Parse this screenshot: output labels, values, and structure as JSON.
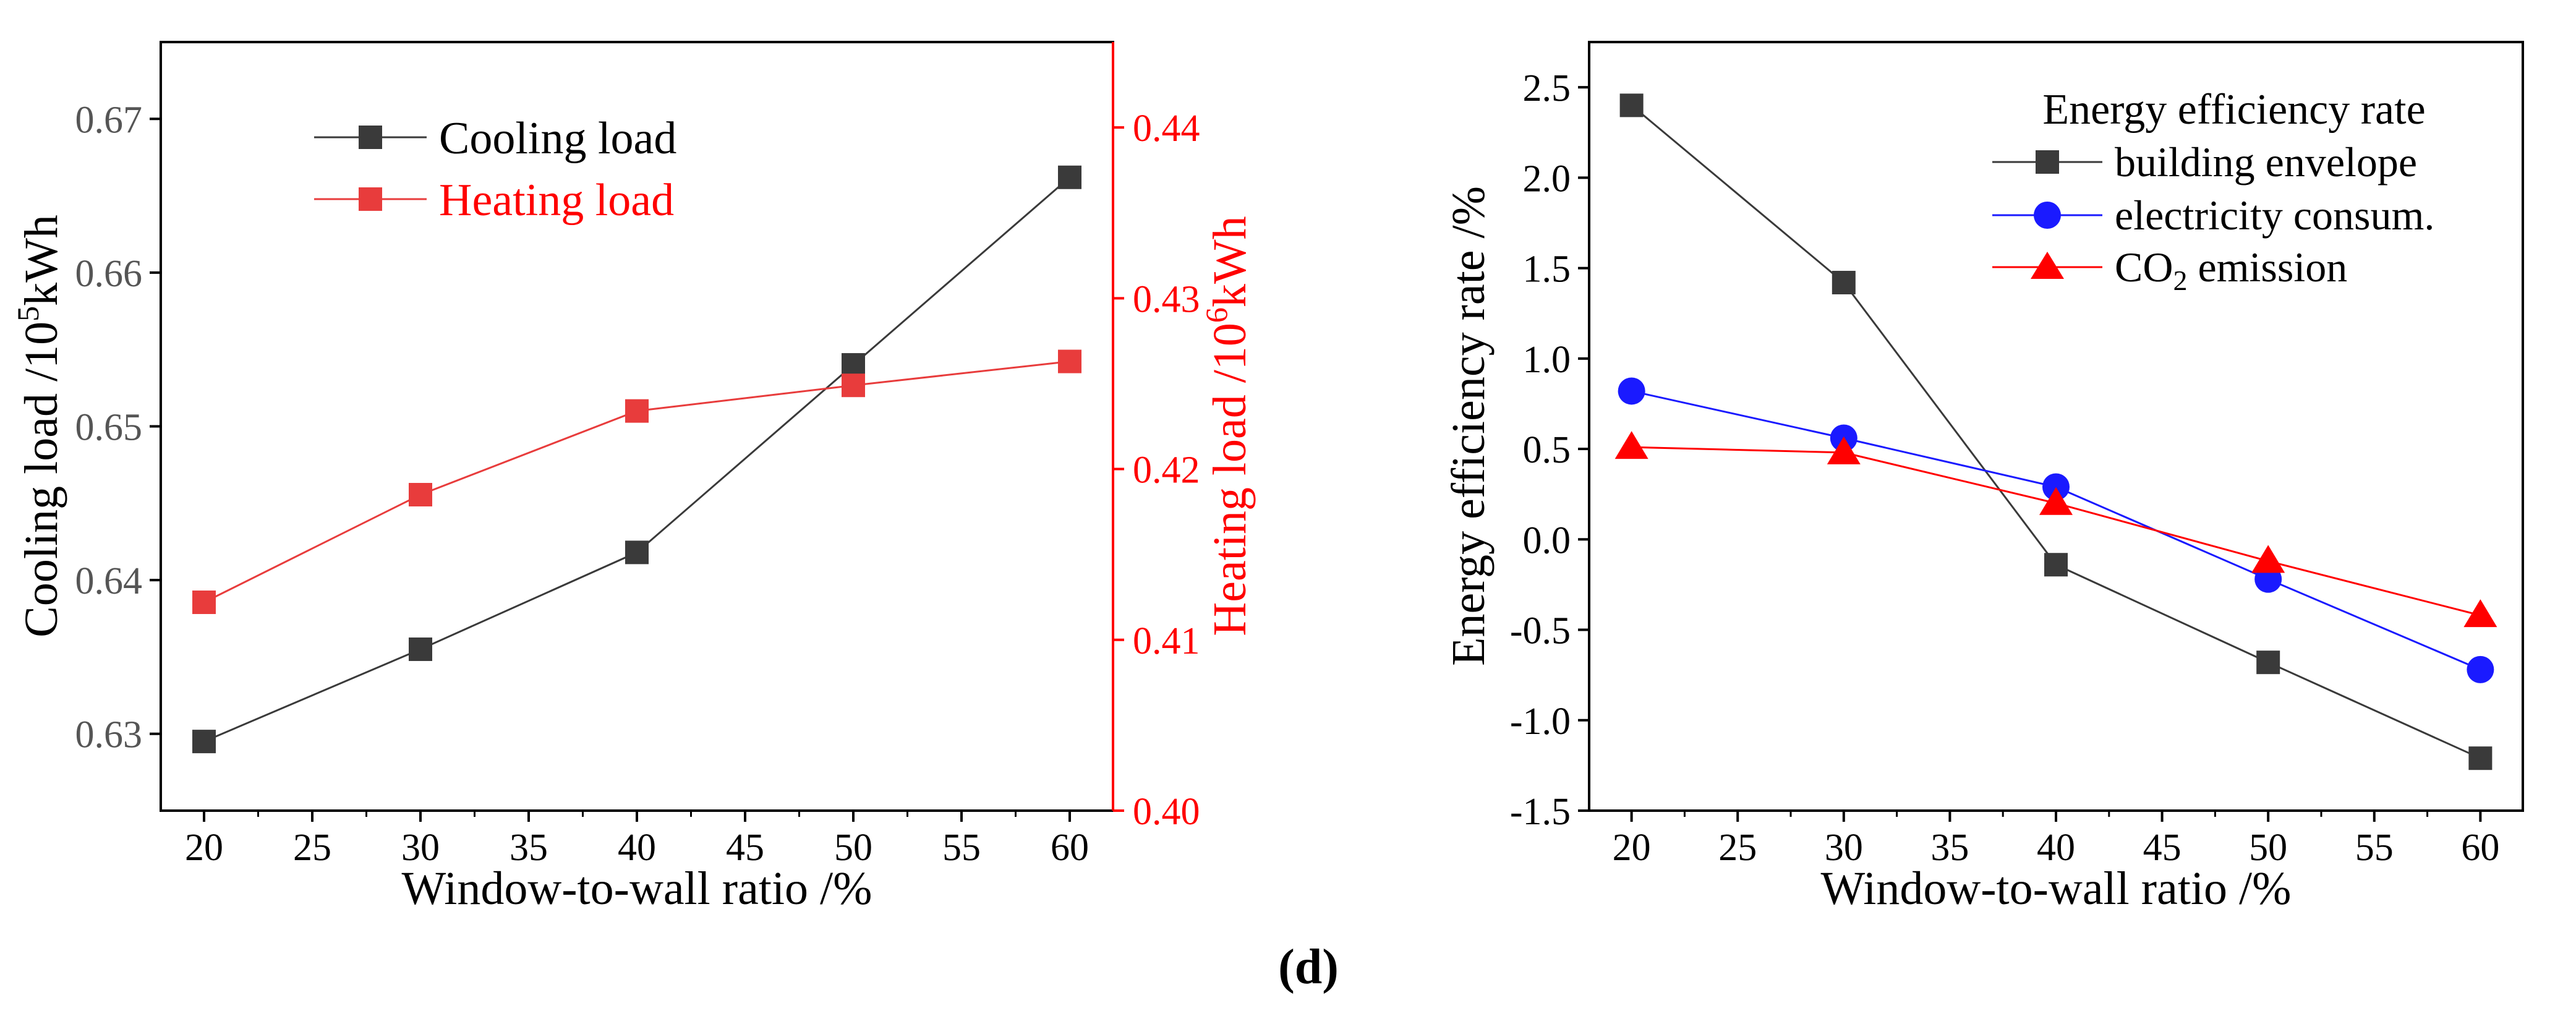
{
  "figure_label": "(d)",
  "colors": {
    "black": "#3a3a3a",
    "red": "#e83c3c",
    "blue": "#1a1aff",
    "pure_red": "#ff0000",
    "axis_red": "#ff0000"
  },
  "chart_data": [
    {
      "type": "line",
      "xlabel": "Window-to-wall ratio /%",
      "ylabel_parts": {
        "base": "Cooling load /10",
        "sup": "5",
        "unit": "kWh"
      },
      "y2label_parts": {
        "base": "Heating load /10",
        "sup": "6",
        "unit": "kWh"
      },
      "xlim": [
        18,
        62
      ],
      "ylim": [
        0.625,
        0.675
      ],
      "y2lim": [
        0.4,
        0.445
      ],
      "x_ticks": [
        20,
        25,
        30,
        35,
        40,
        45,
        50,
        55,
        60
      ],
      "x_tick_labels": [
        "20",
        "25",
        "30",
        "35",
        "40",
        "45",
        "50",
        "55",
        "60"
      ],
      "y_ticks": [
        0.63,
        0.64,
        0.65,
        0.66,
        0.67
      ],
      "y_tick_labels": [
        "0.63",
        "0.64",
        "0.65",
        "0.66",
        "0.67"
      ],
      "y2_ticks": [
        0.4,
        0.41,
        0.42,
        0.43,
        0.44
      ],
      "y2_tick_labels": [
        "0.40",
        "0.41",
        "0.42",
        "0.43",
        "0.44"
      ],
      "series": [
        {
          "name": "Cooling load",
          "axis": "left",
          "color": "#3a3a3a",
          "marker": "square",
          "x": [
            20,
            30,
            40,
            50,
            60
          ],
          "values": [
            0.6295,
            0.6355,
            0.6418,
            0.654,
            0.6662
          ]
        },
        {
          "name": "Heating load",
          "axis": "right",
          "color": "#e83c3c",
          "marker": "square",
          "x": [
            20,
            30,
            40,
            50,
            60
          ],
          "values": [
            0.4122,
            0.4185,
            0.4234,
            0.4249,
            0.4263
          ]
        }
      ],
      "legend_position": "top-left"
    },
    {
      "type": "line",
      "xlabel": "Window-to-wall ratio /%",
      "ylabel": "Energy efficiency rate /%",
      "legend_title": "Energy efficiency rate",
      "xlim": [
        18,
        62
      ],
      "ylim": [
        -1.5,
        2.75
      ],
      "x_ticks": [
        20,
        25,
        30,
        35,
        40,
        45,
        50,
        55,
        60
      ],
      "x_tick_labels": [
        "20",
        "25",
        "30",
        "35",
        "40",
        "45",
        "50",
        "55",
        "60"
      ],
      "y_ticks": [
        -1.5,
        -1.0,
        -0.5,
        0.0,
        0.5,
        1.0,
        1.5,
        2.0,
        2.5
      ],
      "y_tick_labels": [
        "-1.5",
        "-1.0",
        "-0.5",
        "0.0",
        "0.5",
        "1.0",
        "1.5",
        "2.0",
        "2.5"
      ],
      "series": [
        {
          "name": "building envelope",
          "color": "#3a3a3a",
          "marker": "square",
          "x": [
            20,
            30,
            40,
            50,
            60
          ],
          "values": [
            2.4,
            1.42,
            -0.14,
            -0.68,
            -1.21
          ]
        },
        {
          "name": "electricity consum.",
          "color": "#1a1aff",
          "marker": "circle",
          "x": [
            20,
            30,
            40,
            50,
            60
          ],
          "values": [
            0.82,
            0.56,
            0.29,
            -0.22,
            -0.72
          ]
        },
        {
          "name_parts": {
            "pre": "CO",
            "sub": "2",
            "post": " emission"
          },
          "color": "#ff0000",
          "marker": "triangle",
          "x": [
            20,
            30,
            40,
            50,
            60
          ],
          "values": [
            0.51,
            0.48,
            0.2,
            -0.12,
            -0.42
          ]
        }
      ],
      "legend_position": "top-right"
    }
  ]
}
